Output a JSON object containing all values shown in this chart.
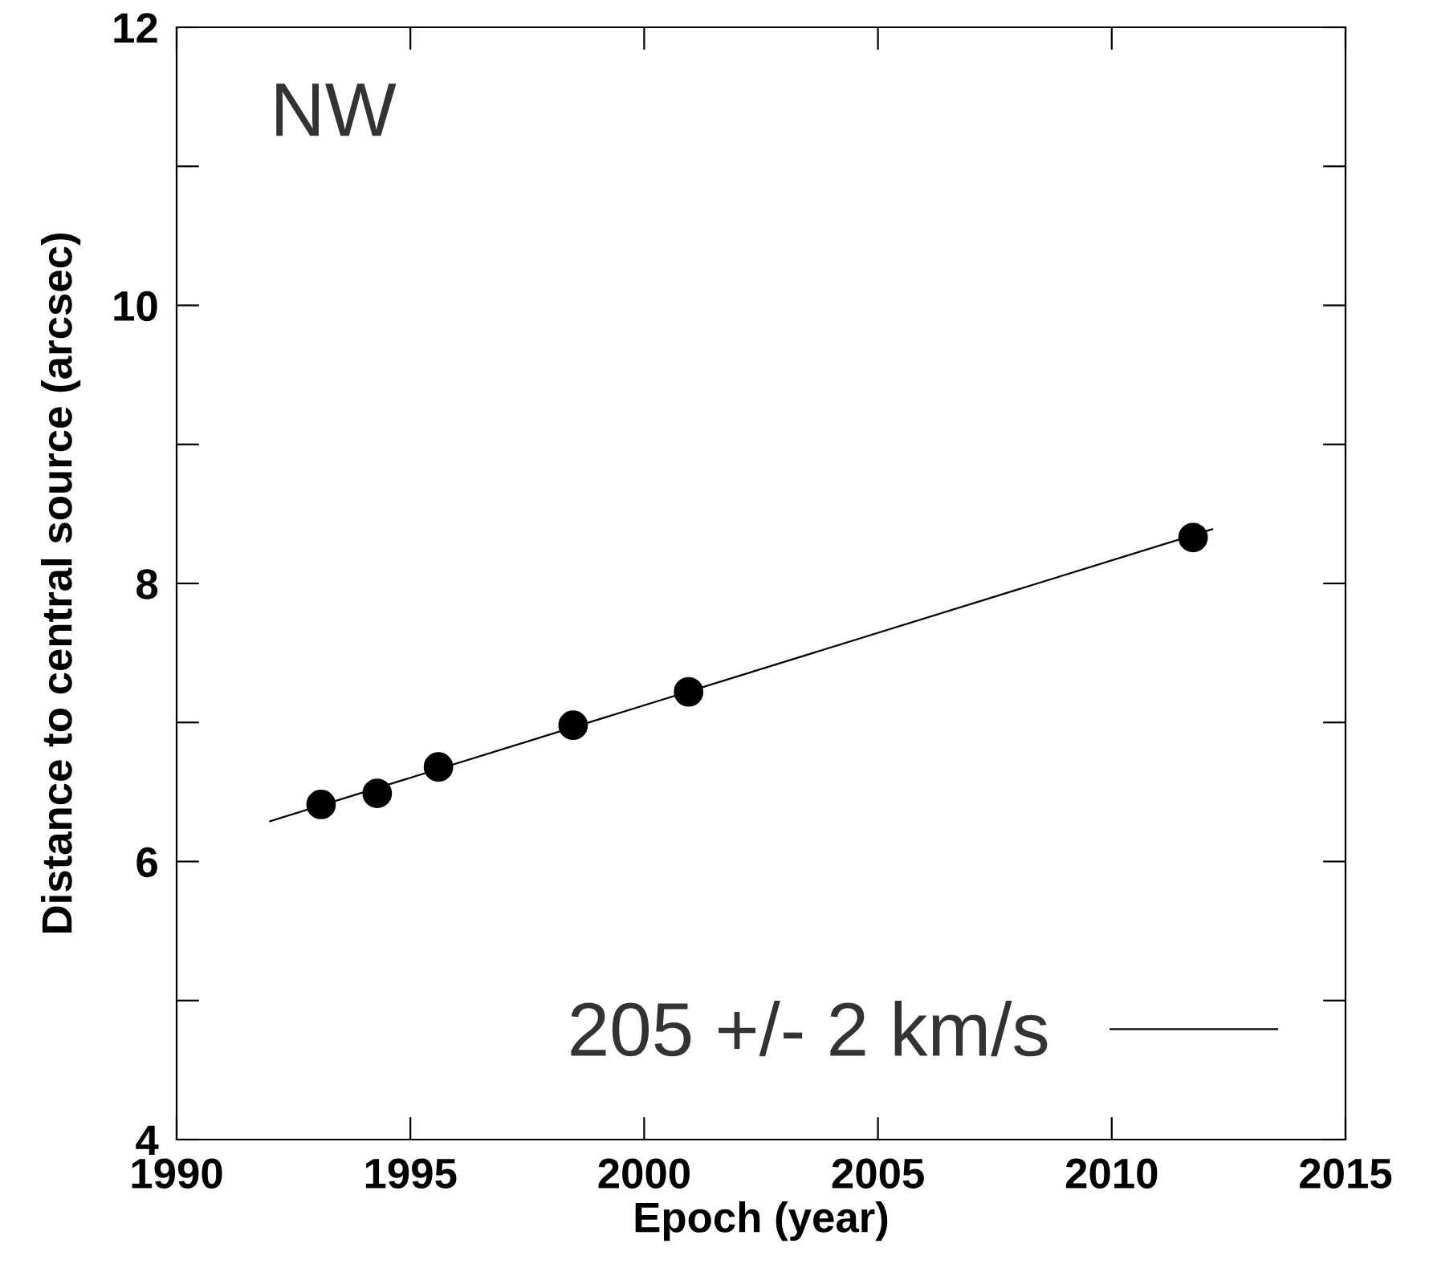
{
  "chart_data": {
    "type": "scatter",
    "xlabel": "Epoch (year)",
    "ylabel": "Distance to central source (arcsec)",
    "annotations": [
      "NW"
    ],
    "xlim": [
      1990,
      2015
    ],
    "xticks": [
      1990,
      1995,
      2000,
      2005,
      2010,
      2015
    ],
    "ylim": [
      4,
      12
    ],
    "yticks": [
      4,
      {
        "value": 5,
        "label": null
      },
      6,
      {
        "value": 7,
        "label": null
      },
      8,
      {
        "value": 9,
        "label": null
      },
      10,
      {
        "value": 11,
        "label": null
      },
      12
    ],
    "grid": false,
    "legend": "bottom right",
    "series": [
      {
        "marker": "circle",
        "color": "#000000",
        "x": [
          1993.09,
          1994.29,
          1995.6,
          1998.48,
          2000.95,
          2011.74
        ],
        "values": [
          6.41,
          6.49,
          6.68,
          6.98,
          7.22,
          8.33
        ]
      },
      {
        "type": "line",
        "name": "205 +/- 2 km/s",
        "color": "#000000",
        "line_style": "solid",
        "marker": "none",
        "x": [
          1992.0,
          2012.15
        ],
        "values": [
          6.29,
          8.39
        ]
      }
    ]
  }
}
